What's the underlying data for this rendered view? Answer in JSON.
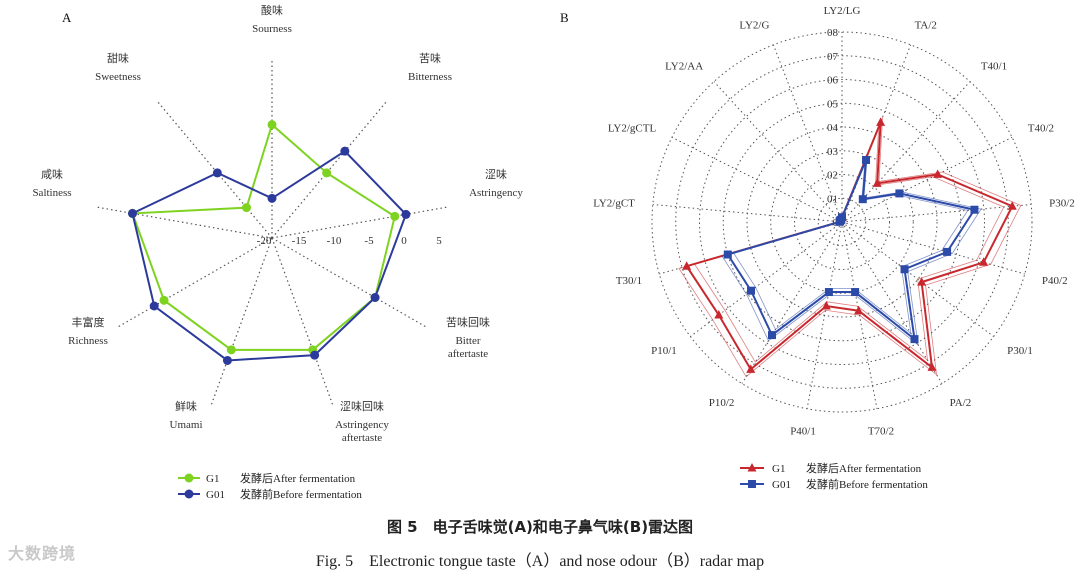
{
  "figure": {
    "caption_cn": "图 5　电子舌味觉(A)和电子鼻气味(B)雷达图",
    "caption_en": "Fig. 5　Electronic tongue taste（A）and nose odour（B）radar map",
    "watermark": "大数跨境"
  },
  "chart_data": [
    {
      "type": "radar",
      "panel_label": "A",
      "axes_cn": [
        "酸味",
        "苦味",
        "涩味",
        "苦味回味",
        "涩味回味",
        "鲜味",
        "丰富度",
        "咸味",
        "甜味"
      ],
      "axes_en": [
        "Sourness",
        "Bitterness",
        "Astringency",
        "Bitter aftertaste",
        "Astringency aftertaste",
        "Umami",
        "Richness",
        "Saltiness",
        "Sweetness"
      ],
      "rlim": [
        -25,
        5
      ],
      "ticks": [
        "-20",
        "-15",
        "-10",
        "-5",
        "0",
        "5"
      ],
      "tick_values": [
        -20,
        -15,
        -10,
        -5,
        0,
        5
      ],
      "grid": true,
      "legend_position": "bottom",
      "series": [
        {
          "name": "G1",
          "legend_cn": "发酵后After fermentation",
          "color": "#7ed321",
          "marker": "circle",
          "values": [
            -5,
            -10,
            -3,
            -4,
            -4,
            -4,
            -3,
            0,
            -18
          ]
        },
        {
          "name": "G01",
          "legend_cn": "发酵前Before fermentation",
          "color": "#2c3a9c",
          "marker": "circle",
          "values": [
            -18,
            -5,
            -1,
            -4,
            -3,
            -2,
            -1,
            0,
            -10
          ]
        }
      ]
    },
    {
      "type": "radar",
      "panel_label": "B",
      "axes": [
        "LY2/LG",
        "TA/2",
        "T40/1",
        "T40/2",
        "P30/2",
        "P40/2",
        "P30/1",
        "PA/2",
        "T70/2",
        "P40/1",
        "P10/2",
        "P10/1",
        "T30/1",
        "LY2/gCT",
        "LY2/gCTL",
        "LY2/AA",
        "LY2/G"
      ],
      "rlim": [
        0,
        0.8
      ],
      "ticks": [
        "0",
        "01",
        "02",
        "03",
        "04",
        "05",
        "06",
        "07",
        "08"
      ],
      "tick_values": [
        0,
        0.1,
        0.2,
        0.3,
        0.4,
        0.5,
        0.6,
        0.7,
        0.8
      ],
      "grid": true,
      "legend_position": "bottom",
      "series": [
        {
          "name": "G1",
          "legend_cn": "发酵后After fermentation",
          "color": "#c8282d",
          "marker": "triangle",
          "values": [
            0.02,
            0.45,
            0.22,
            0.45,
            0.72,
            0.62,
            0.42,
            0.72,
            0.38,
            0.36,
            0.73,
            0.65,
            0.68,
            0.01,
            0.01,
            0.01,
            0.01
          ]
        },
        {
          "name": "G01",
          "legend_cn": "发酵前Before fermentation",
          "color": "#2c4aa8",
          "marker": "square",
          "values": [
            0.02,
            0.28,
            0.13,
            0.27,
            0.56,
            0.46,
            0.33,
            0.58,
            0.3,
            0.3,
            0.56,
            0.48,
            0.5,
            0.01,
            0.01,
            0.01,
            0.01
          ]
        }
      ]
    }
  ]
}
